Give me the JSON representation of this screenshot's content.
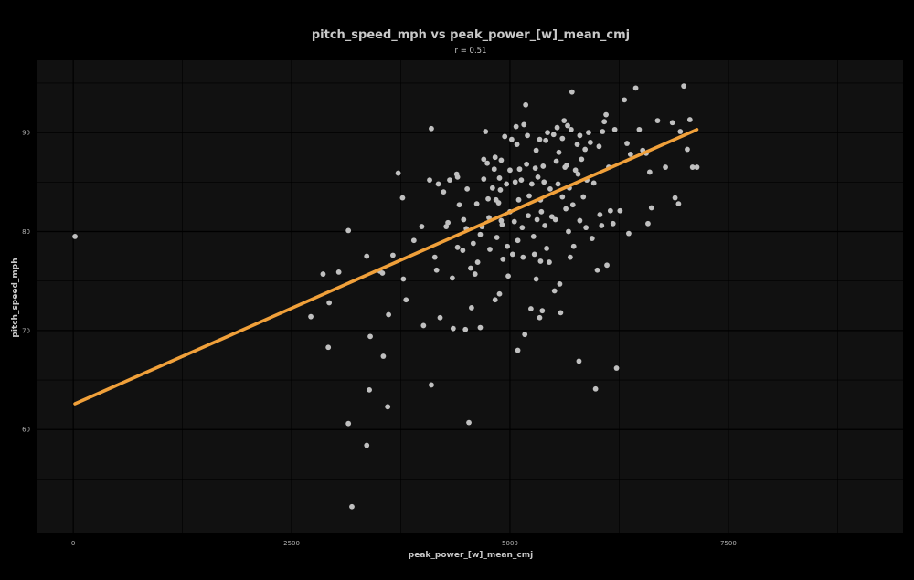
{
  "chart_data": {
    "type": "scatter",
    "title": "pitch_speed_mph vs peak_power_[w]_mean_cmj",
    "subtitle": "r =  0.51",
    "xlabel": "peak_power_[w]_mean_cmj",
    "ylabel": "pitch_speed_mph",
    "xlim": [
      -420,
      9500
    ],
    "ylim": [
      49.5,
      97.3
    ],
    "xticks": [
      0,
      2500,
      5000,
      7500
    ],
    "xtick_labels": [
      "0",
      "2500",
      "5000",
      "7500"
    ],
    "yticks": [
      60,
      70,
      80,
      90
    ],
    "ytick_labels": [
      "60",
      "70",
      "80",
      "90"
    ],
    "grid": true,
    "legend": "none",
    "colors": {
      "background": "#000000",
      "panel": "#111111",
      "grid": "#000000",
      "points": "#c0c0c0",
      "fit_line": "#f0a03a"
    },
    "fit_line": {
      "x": [
        20,
        7140
      ],
      "y": [
        62.6,
        90.3
      ]
    },
    "points": [
      [
        20,
        79.5
      ],
      [
        2720,
        71.4
      ],
      [
        2860,
        75.7
      ],
      [
        2930,
        72.8
      ],
      [
        2920,
        68.3
      ],
      [
        3040,
        75.9
      ],
      [
        3150,
        80.1
      ],
      [
        3150,
        60.6
      ],
      [
        3190,
        52.2
      ],
      [
        3360,
        77.5
      ],
      [
        3360,
        58.4
      ],
      [
        3390,
        64.0
      ],
      [
        3400,
        69.4
      ],
      [
        3510,
        76.0
      ],
      [
        3540,
        75.8
      ],
      [
        3550,
        67.4
      ],
      [
        3600,
        62.3
      ],
      [
        3610,
        71.6
      ],
      [
        3660,
        77.6
      ],
      [
        3720,
        85.9
      ],
      [
        3770,
        83.4
      ],
      [
        3780,
        75.2
      ],
      [
        3810,
        73.1
      ],
      [
        3900,
        79.1
      ],
      [
        3990,
        80.5
      ],
      [
        4010,
        70.5
      ],
      [
        4080,
        85.2
      ],
      [
        4100,
        90.4
      ],
      [
        4100,
        64.5
      ],
      [
        4140,
        77.4
      ],
      [
        4160,
        76.1
      ],
      [
        4180,
        84.8
      ],
      [
        4200,
        71.3
      ],
      [
        4240,
        84.0
      ],
      [
        4270,
        80.5
      ],
      [
        4290,
        80.9
      ],
      [
        4310,
        85.2
      ],
      [
        4350,
        70.2
      ],
      [
        4340,
        75.3
      ],
      [
        4390,
        85.8
      ],
      [
        4400,
        85.5
      ],
      [
        4400,
        78.4
      ],
      [
        4420,
        82.7
      ],
      [
        4460,
        78.1
      ],
      [
        4470,
        81.2
      ],
      [
        4490,
        70.1
      ],
      [
        4500,
        80.3
      ],
      [
        4510,
        84.3
      ],
      [
        4530,
        60.7
      ],
      [
        4550,
        76.3
      ],
      [
        4560,
        72.3
      ],
      [
        4580,
        78.8
      ],
      [
        4600,
        75.7
      ],
      [
        4620,
        82.8
      ],
      [
        4630,
        76.9
      ],
      [
        4660,
        70.3
      ],
      [
        4660,
        79.7
      ],
      [
        4680,
        80.5
      ],
      [
        4700,
        85.3
      ],
      [
        4700,
        87.3
      ],
      [
        4720,
        90.1
      ],
      [
        4740,
        86.9
      ],
      [
        4750,
        83.3
      ],
      [
        4760,
        81.4
      ],
      [
        4770,
        78.2
      ],
      [
        4800,
        84.4
      ],
      [
        4820,
        86.3
      ],
      [
        4830,
        73.1
      ],
      [
        4830,
        87.5
      ],
      [
        4840,
        83.2
      ],
      [
        4850,
        79.4
      ],
      [
        4870,
        82.9
      ],
      [
        4880,
        85.4
      ],
      [
        4880,
        73.7
      ],
      [
        4890,
        84.2
      ],
      [
        4900,
        87.2
      ],
      [
        4900,
        81.1
      ],
      [
        4910,
        80.7
      ],
      [
        4920,
        77.2
      ],
      [
        4940,
        89.6
      ],
      [
        4960,
        84.8
      ],
      [
        4970,
        78.5
      ],
      [
        4980,
        75.5
      ],
      [
        5000,
        82.0
      ],
      [
        5000,
        86.2
      ],
      [
        5020,
        89.3
      ],
      [
        5030,
        77.7
      ],
      [
        5050,
        81.0
      ],
      [
        5060,
        85.0
      ],
      [
        5070,
        90.6
      ],
      [
        5080,
        88.8
      ],
      [
        5090,
        79.1
      ],
      [
        5090,
        68.0
      ],
      [
        5100,
        83.2
      ],
      [
        5110,
        86.3
      ],
      [
        5130,
        85.2
      ],
      [
        5140,
        80.4
      ],
      [
        5150,
        77.4
      ],
      [
        5160,
        90.8
      ],
      [
        5170,
        69.6
      ],
      [
        5180,
        92.8
      ],
      [
        5190,
        86.8
      ],
      [
        5200,
        89.7
      ],
      [
        5210,
        81.6
      ],
      [
        5220,
        83.6
      ],
      [
        5240,
        72.2
      ],
      [
        5250,
        84.8
      ],
      [
        5270,
        79.5
      ],
      [
        5280,
        77.7
      ],
      [
        5290,
        86.4
      ],
      [
        5300,
        75.2
      ],
      [
        5300,
        88.2
      ],
      [
        5310,
        81.2
      ],
      [
        5320,
        85.5
      ],
      [
        5340,
        89.3
      ],
      [
        5340,
        71.3
      ],
      [
        5350,
        77.0
      ],
      [
        5350,
        83.2
      ],
      [
        5360,
        82.0
      ],
      [
        5370,
        72.0
      ],
      [
        5380,
        86.6
      ],
      [
        5390,
        85.0
      ],
      [
        5400,
        80.6
      ],
      [
        5410,
        89.2
      ],
      [
        5420,
        78.3
      ],
      [
        5430,
        90.0
      ],
      [
        5450,
        76.9
      ],
      [
        5460,
        84.3
      ],
      [
        5480,
        81.5
      ],
      [
        5500,
        89.8
      ],
      [
        5510,
        74.0
      ],
      [
        5520,
        81.2
      ],
      [
        5530,
        87.1
      ],
      [
        5540,
        90.5
      ],
      [
        5550,
        84.8
      ],
      [
        5560,
        88.0
      ],
      [
        5570,
        74.7
      ],
      [
        5580,
        71.8
      ],
      [
        5600,
        89.4
      ],
      [
        5600,
        83.5
      ],
      [
        5620,
        91.2
      ],
      [
        5630,
        86.5
      ],
      [
        5640,
        82.3
      ],
      [
        5650,
        86.7
      ],
      [
        5660,
        90.7
      ],
      [
        5670,
        80.0
      ],
      [
        5680,
        84.4
      ],
      [
        5690,
        77.4
      ],
      [
        5700,
        90.3
      ],
      [
        5710,
        94.1
      ],
      [
        5720,
        82.7
      ],
      [
        5730,
        78.5
      ],
      [
        5750,
        86.2
      ],
      [
        5770,
        88.8
      ],
      [
        5780,
        85.8
      ],
      [
        5790,
        66.9
      ],
      [
        5800,
        81.1
      ],
      [
        5800,
        89.7
      ],
      [
        5820,
        87.3
      ],
      [
        5840,
        83.5
      ],
      [
        5860,
        88.3
      ],
      [
        5870,
        80.4
      ],
      [
        5880,
        85.2
      ],
      [
        5900,
        90.0
      ],
      [
        5920,
        89.0
      ],
      [
        5940,
        79.3
      ],
      [
        5960,
        84.9
      ],
      [
        5980,
        64.1
      ],
      [
        6000,
        76.1
      ],
      [
        6020,
        88.6
      ],
      [
        6030,
        81.7
      ],
      [
        6050,
        80.6
      ],
      [
        6060,
        90.1
      ],
      [
        6080,
        91.1
      ],
      [
        6100,
        91.8
      ],
      [
        6110,
        76.6
      ],
      [
        6130,
        86.5
      ],
      [
        6150,
        82.1
      ],
      [
        6180,
        80.8
      ],
      [
        6200,
        90.3
      ],
      [
        6220,
        66.2
      ],
      [
        6260,
        82.1
      ],
      [
        6310,
        93.3
      ],
      [
        6340,
        88.9
      ],
      [
        6360,
        79.8
      ],
      [
        6380,
        87.8
      ],
      [
        6440,
        94.5
      ],
      [
        6480,
        90.3
      ],
      [
        6520,
        88.2
      ],
      [
        6560,
        87.9
      ],
      [
        6580,
        80.8
      ],
      [
        6600,
        86.0
      ],
      [
        6620,
        82.4
      ],
      [
        6690,
        91.2
      ],
      [
        6780,
        86.5
      ],
      [
        6860,
        91.0
      ],
      [
        6890,
        83.4
      ],
      [
        6930,
        82.8
      ],
      [
        6950,
        90.1
      ],
      [
        6990,
        94.7
      ],
      [
        7030,
        88.3
      ],
      [
        7060,
        91.3
      ],
      [
        7090,
        86.5
      ],
      [
        7140,
        86.5
      ]
    ]
  }
}
